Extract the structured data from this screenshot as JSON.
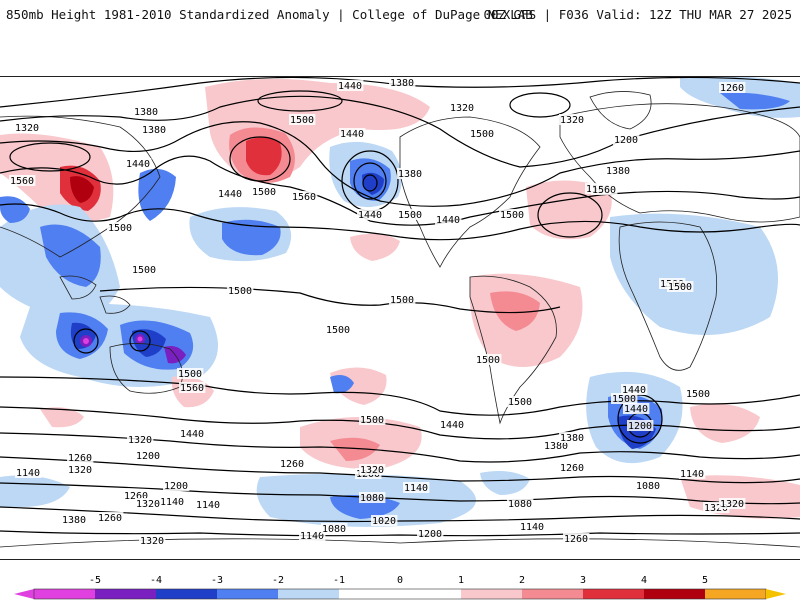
{
  "header": {
    "title": "850mb Height 1981-2010 Standardized Anomaly | College of DuPage NEXLAB",
    "run_info": "00Z GFS | F036 Valid: 12Z THU MAR 27 2025"
  },
  "colors": {
    "anom_neg5": "#e040e0",
    "anom_neg4": "#7a1fc0",
    "anom_neg3": "#1f3fc8",
    "anom_neg2": "#4f7ff0",
    "anom_neg1": "#bcd8f5",
    "anom_pos1": "#f8c8cc",
    "anom_pos2": "#f48a92",
    "anom_pos3": "#e0303c",
    "anom_pos4": "#b00010",
    "anom_pos5": "#f5a623",
    "contour": "#000000",
    "coast": "#222222"
  },
  "colorbar": {
    "ticks": [
      "-5",
      "-4",
      "-3",
      "-2",
      "-1",
      "0",
      "1",
      "2",
      "3",
      "4",
      "5"
    ]
  },
  "map_labels": [
    "1380",
    "1440",
    "1500",
    "1380",
    "1320",
    "1500",
    "1260",
    "1380",
    "1440",
    "1320",
    "1200",
    "1320",
    "1380",
    "1440",
    "1560",
    "1440",
    "1500",
    "1560",
    "1380",
    "1440",
    "1500",
    "1500",
    "1500",
    "1560",
    "1440",
    "1500",
    "1500",
    "1500",
    "1500",
    "1500",
    "1500",
    "1500",
    "1500",
    "1500",
    "1560",
    "1500",
    "1500",
    "1440",
    "1500",
    "1440",
    "1380",
    "1320",
    "1260",
    "1200",
    "1320",
    "1260",
    "1200",
    "1380",
    "1440",
    "1500",
    "1440",
    "1260",
    "1320",
    "1200",
    "1140",
    "1140",
    "1080",
    "1080",
    "1320",
    "1140",
    "1200",
    "1260",
    "1140",
    "1260",
    "1320",
    "1140",
    "1080",
    "1020",
    "1200",
    "1140",
    "1260",
    "1320",
    "1080",
    "1140",
    "1380",
    "1320"
  ]
}
